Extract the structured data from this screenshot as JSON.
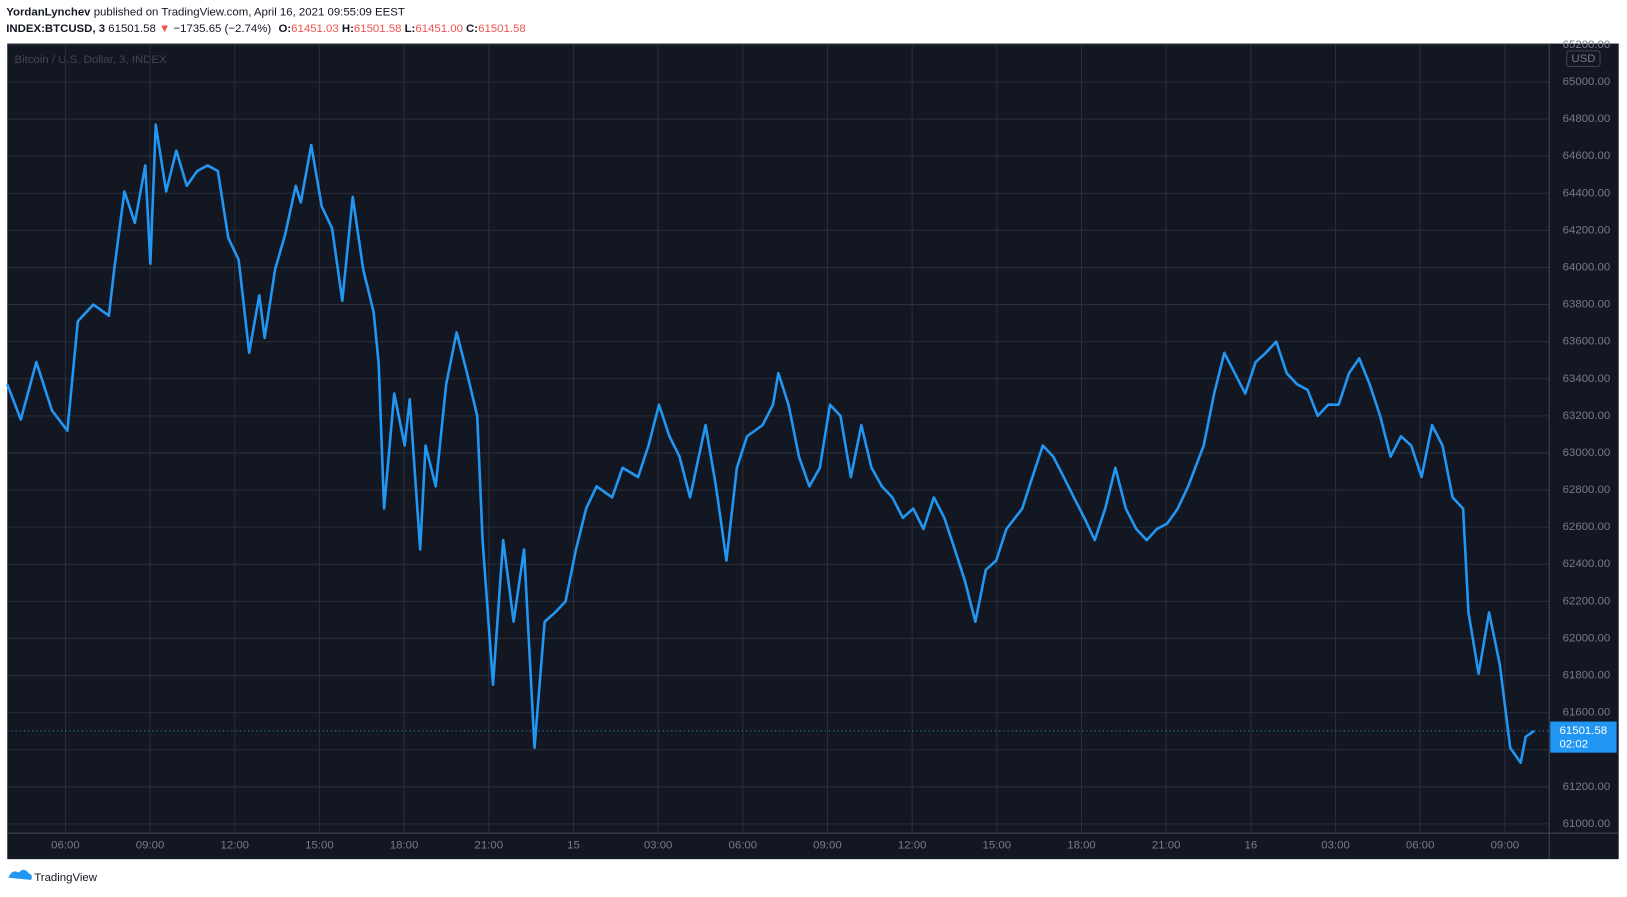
{
  "header": {
    "author": "YordanLynchev",
    "published": "published on TradingView.com, April 16, 2021 09:55:09 EEST",
    "symbol": "INDEX:BTCUSD, 3",
    "price": "61501.58",
    "arrow": "▼",
    "change": "−1735.65 (−2.74%)",
    "ohlc": [
      {
        "key": "O:",
        "value": "61451.03"
      },
      {
        "key": "H:",
        "value": "61501.58"
      },
      {
        "key": "L:",
        "value": "61451.00"
      },
      {
        "key": "C:",
        "value": "61501.58"
      }
    ]
  },
  "footer": {
    "brand": "TradingView"
  },
  "chart_data": {
    "type": "line",
    "title": "Bitcoin / U.S. Dollar, 3, INDEX",
    "currency": "USD",
    "x": [
      3.94,
      4.42,
      4.97,
      5.52,
      6.07,
      6.44,
      6.99,
      7.54,
      7.73,
      8.09,
      8.46,
      8.83,
      9.01,
      9.2,
      9.57,
      9.93,
      10.3,
      10.67,
      11.04,
      11.4,
      11.77,
      12.14,
      12.51,
      12.87,
      13.06,
      13.43,
      13.79,
      14.16,
      14.34,
      14.71,
      15.08,
      15.45,
      15.81,
      16.18,
      16.55,
      16.92,
      17.1,
      17.29,
      17.65,
      18.02,
      18.2,
      18.57,
      18.76,
      19.12,
      19.49,
      19.86,
      20.23,
      20.59,
      20.78,
      21.15,
      21.51,
      21.88,
      22.25,
      22.62,
      22.98,
      23.35,
      23.72,
      24.09,
      24.45,
      24.82,
      25.37,
      25.74,
      26.29,
      26.66,
      27.03,
      27.4,
      27.76,
      28.13,
      28.68,
      29.05,
      29.42,
      29.79,
      30.15,
      30.7,
      31.07,
      31.26,
      31.62,
      31.99,
      32.36,
      32.73,
      33.09,
      33.46,
      33.83,
      34.2,
      34.56,
      34.93,
      35.3,
      35.67,
      36.04,
      36.4,
      36.77,
      37.14,
      37.51,
      37.87,
      38.24,
      38.61,
      38.98,
      39.34,
      39.9,
      40.26,
      40.63,
      41.0,
      41.37,
      41.73,
      42.1,
      42.47,
      42.84,
      43.2,
      43.57,
      43.94,
      44.31,
      44.67,
      45.04,
      45.41,
      45.78,
      46.33,
      46.7,
      47.06,
      47.43,
      47.8,
      48.17,
      48.53,
      48.9,
      49.27,
      49.64,
      50.01,
      50.37,
      50.74,
      51.11,
      51.48,
      51.84,
      52.21,
      52.58,
      52.95,
      53.32,
      53.68,
      54.05,
      54.42,
      54.79,
      55.15,
      55.52,
      55.71,
      56.07,
      56.44,
      56.82,
      57.19,
      57.56,
      57.74,
      58.04
    ],
    "series": [
      {
        "name": "BTCUSD",
        "color": "#2196f3",
        "values": [
          63370,
          63180,
          63490,
          63230,
          63120,
          63710,
          63800,
          63740,
          63990,
          64410,
          64240,
          64550,
          64020,
          64770,
          64410,
          64630,
          64440,
          64520,
          64550,
          64520,
          64160,
          64040,
          63540,
          63850,
          63620,
          63990,
          64180,
          64440,
          64350,
          64660,
          64330,
          64210,
          63820,
          64380,
          63990,
          63760,
          63480,
          62700,
          63320,
          63040,
          63290,
          62480,
          63040,
          62820,
          63370,
          63650,
          63430,
          63200,
          62530,
          61750,
          62530,
          62090,
          62480,
          61410,
          62090,
          62140,
          62200,
          62480,
          62700,
          62820,
          62760,
          62920,
          62870,
          63040,
          63260,
          63090,
          62980,
          62760,
          63150,
          62820,
          62420,
          62920,
          63090,
          63150,
          63260,
          63430,
          63260,
          62980,
          62820,
          62920,
          63260,
          63200,
          62870,
          63150,
          62920,
          62820,
          62760,
          62650,
          62700,
          62590,
          62760,
          62650,
          62480,
          62310,
          62090,
          62370,
          62420,
          62590,
          62700,
          62870,
          63040,
          62980,
          62870,
          62760,
          62650,
          62530,
          62700,
          62920,
          62700,
          62590,
          62530,
          62590,
          62620,
          62700,
          62820,
          63040,
          63320,
          63540,
          63430,
          63320,
          63490,
          63540,
          63600,
          63430,
          63370,
          63340,
          63200,
          63260,
          63260,
          63430,
          63510,
          63370,
          63200,
          62980,
          63090,
          63040,
          62870,
          63150,
          63040,
          62760,
          62700,
          62140,
          61810,
          62140,
          61860,
          61410,
          61330,
          61470,
          61501.58
        ]
      }
    ],
    "last_price": 61501.58,
    "countdown": "02:02",
    "xlim": [
      3.94,
      58.57
    ],
    "xticks": [
      {
        "value": 6,
        "label": "06:00"
      },
      {
        "value": 9,
        "label": "09:00"
      },
      {
        "value": 12,
        "label": "12:00"
      },
      {
        "value": 15,
        "label": "15:00"
      },
      {
        "value": 18,
        "label": "18:00"
      },
      {
        "value": 21,
        "label": "21:00"
      },
      {
        "value": 24,
        "label": "15"
      },
      {
        "value": 27,
        "label": "03:00"
      },
      {
        "value": 30,
        "label": "06:00"
      },
      {
        "value": 33,
        "label": "09:00"
      },
      {
        "value": 36,
        "label": "12:00"
      },
      {
        "value": 39,
        "label": "15:00"
      },
      {
        "value": 42,
        "label": "18:00"
      },
      {
        "value": 45,
        "label": "21:00"
      },
      {
        "value": 48,
        "label": "16"
      },
      {
        "value": 51,
        "label": "03:00"
      },
      {
        "value": 54,
        "label": "06:00"
      },
      {
        "value": 57,
        "label": "09:00"
      }
    ],
    "ylim": [
      60950,
      65207
    ],
    "yticks": [
      {
        "value": 61000,
        "label": "61000.00"
      },
      {
        "value": 61200,
        "label": "61200.00"
      },
      {
        "value": 61400,
        "label": "61400.00"
      },
      {
        "value": 61600,
        "label": "61600.00"
      },
      {
        "value": 61800,
        "label": "61800.00"
      },
      {
        "value": 62000,
        "label": "62000.00"
      },
      {
        "value": 62200,
        "label": "62200.00"
      },
      {
        "value": 62400,
        "label": "62400.00"
      },
      {
        "value": 62600,
        "label": "62600.00"
      },
      {
        "value": 62800,
        "label": "62800.00"
      },
      {
        "value": 63000,
        "label": "63000.00"
      },
      {
        "value": 63200,
        "label": "63200.00"
      },
      {
        "value": 63400,
        "label": "63400.00"
      },
      {
        "value": 63600,
        "label": "63600.00"
      },
      {
        "value": 63800,
        "label": "63800.00"
      },
      {
        "value": 64000,
        "label": "64000.00"
      },
      {
        "value": 64200,
        "label": "64200.00"
      },
      {
        "value": 64400,
        "label": "64400.00"
      },
      {
        "value": 64600,
        "label": "64600.00"
      },
      {
        "value": 64800,
        "label": "64800.00"
      },
      {
        "value": 65000,
        "label": "65000.00"
      },
      {
        "value": 65200,
        "label": "65200.00"
      }
    ],
    "grid": true
  }
}
